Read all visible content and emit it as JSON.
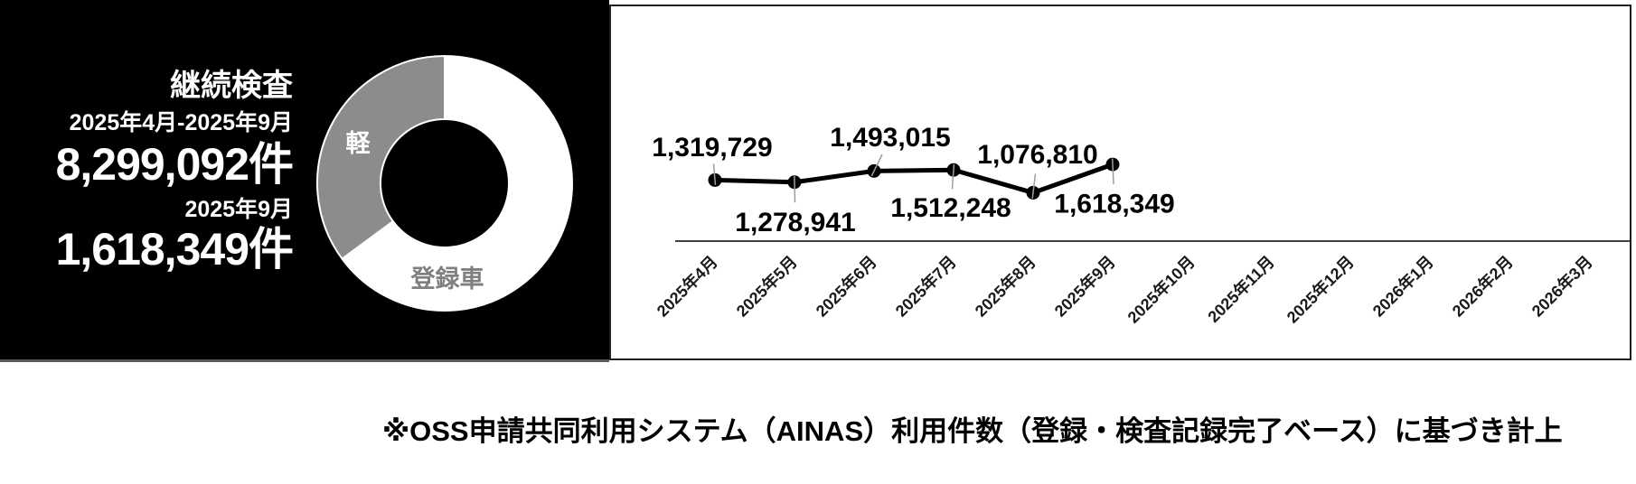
{
  "left_panel": {
    "title": "継続検査",
    "period_label": "2025年4月-2025年9月",
    "period_total": "8,299,092件",
    "month_label": "2025年9月",
    "month_total": "1,618,349件",
    "background_color": "#000000",
    "text_color": "#ffffff"
  },
  "chart_data": [
    {
      "type": "line",
      "title": "",
      "categories": [
        "2025年4月",
        "2025年5月",
        "2025年6月",
        "2025年7月",
        "2025年8月",
        "2025年9月",
        "2025年10月",
        "2025年11月",
        "2025年12月",
        "2026年1月",
        "2026年2月",
        "2026年3月"
      ],
      "series": [
        {
          "values": [
            1319729,
            1278941,
            1493015,
            1512248,
            1076810,
            1618349
          ]
        }
      ],
      "data_labels": [
        "1,319,729",
        "1,278,941",
        "1,493,015",
        "1,512,248",
        "1,076,810",
        "1,618,349"
      ],
      "xlabel": "",
      "ylabel": "",
      "y_axis_visible": false,
      "grid": "off",
      "legend": "none",
      "x_tick_rotation": -45,
      "ylim_estimate": [
        150000,
        2200000
      ],
      "line_color": "#000000",
      "axis_color": "#404040"
    },
    {
      "type": "pie",
      "subtype": "donut",
      "segments": [
        {
          "label": "登録車",
          "percent_estimate": 64.9,
          "color": "#ffffff",
          "label_color": "#7f7f7f"
        },
        {
          "label": "軽",
          "percent_estimate": 35.1,
          "color": "#8c8c8c",
          "label_color": "#ffffff"
        }
      ],
      "start_angle_clockwise_from_top_deg": 0,
      "values_shown": false
    }
  ],
  "footnote": {
    "text": "※OSS申請共同利用システム（AINAS）利用件数（登録・検査記録完了ベース）に基づき計上"
  }
}
